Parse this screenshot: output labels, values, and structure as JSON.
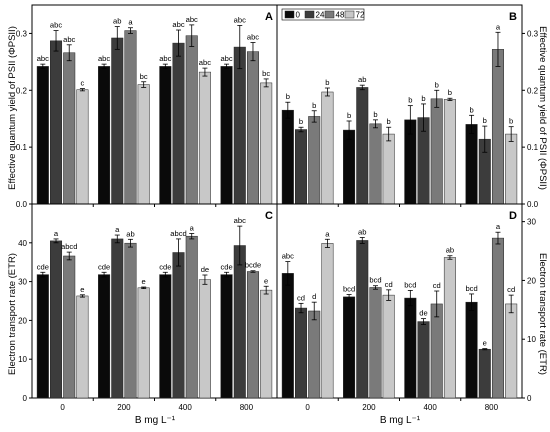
{
  "figure": {
    "x_axis_label": "B mg L⁻¹",
    "left_top_ylabel": "Effective quantum yield of PSII (ΦPSII)",
    "right_top_ylabel": "Effective quantum yield of PSII (ΦPSII)",
    "left_bottom_ylabel": "Electron transport rate (ETR)",
    "right_bottom_ylabel": "Electron transport rate (ETR)",
    "legend": [
      "0",
      "24",
      "48",
      "72"
    ],
    "series_colors": [
      "#0a0a0a",
      "#3c3c3c",
      "#7a7a7a",
      "#c8c8c8"
    ]
  },
  "chart_data": [
    {
      "panel": "A",
      "type": "bar",
      "categories": [
        "0",
        "200",
        "400",
        "800"
      ],
      "series": [
        {
          "name": "0",
          "values": [
            0.242,
            0.242,
            0.242,
            0.242
          ],
          "errors": [
            0.004,
            0.004,
            0.004,
            0.004
          ],
          "letters": [
            "abc",
            "abc",
            "abc",
            "abc"
          ]
        },
        {
          "name": "24",
          "values": [
            0.287,
            0.292,
            0.283,
            0.276
          ],
          "errors": [
            0.018,
            0.02,
            0.023,
            0.038
          ],
          "letters": [
            "abc",
            "ab",
            "abc",
            "abc"
          ]
        },
        {
          "name": "48",
          "values": [
            0.266,
            0.305,
            0.296,
            0.268
          ],
          "errors": [
            0.014,
            0.005,
            0.019,
            0.016
          ],
          "letters": [
            "abc",
            "a",
            "abc",
            "abc"
          ]
        },
        {
          "name": "72",
          "values": [
            0.201,
            0.21,
            0.232,
            0.213
          ],
          "errors": [
            0.002,
            0.005,
            0.007,
            0.007
          ],
          "letters": [
            "c",
            "bc",
            "abc",
            "bc"
          ]
        }
      ],
      "ylim": [
        0,
        0.35
      ],
      "yticks": [
        0.0,
        0.1,
        0.2,
        0.3
      ],
      "ytick_labels": [
        "0.0",
        "0.1",
        "0.2",
        "0.3"
      ],
      "yaxis_side": "left",
      "xlabel": "B mg L⁻¹",
      "ylabel": "Effective quantum yield of PSII (ΦPSII)"
    },
    {
      "panel": "B",
      "type": "bar",
      "categories": [
        "0",
        "200",
        "400",
        "800"
      ],
      "series": [
        {
          "name": "0",
          "values": [
            0.165,
            0.13,
            0.148,
            0.14
          ],
          "errors": [
            0.014,
            0.016,
            0.025,
            0.016
          ],
          "letters": [
            "b",
            "b",
            "b",
            "b"
          ]
        },
        {
          "name": "24",
          "values": [
            0.131,
            0.205,
            0.152,
            0.114
          ],
          "errors": [
            0.004,
            0.004,
            0.024,
            0.023
          ],
          "letters": [
            "b",
            "ab",
            "b",
            "b"
          ]
        },
        {
          "name": "48",
          "values": [
            0.154,
            0.141,
            0.185,
            0.272
          ],
          "errors": [
            0.01,
            0.007,
            0.015,
            0.03
          ],
          "letters": [
            "b",
            "b",
            "b",
            "a"
          ]
        },
        {
          "name": "72",
          "values": [
            0.197,
            0.123,
            0.184,
            0.123
          ],
          "errors": [
            0.007,
            0.012,
            0.002,
            0.013
          ],
          "letters": [
            "b",
            "b",
            "b",
            "b"
          ]
        }
      ],
      "ylim": [
        0,
        0.35
      ],
      "yticks": [
        0.0,
        0.1,
        0.2,
        0.3
      ],
      "ytick_labels": [
        "0.0",
        "0.1",
        "0.2",
        "0.3"
      ],
      "yaxis_side": "right",
      "legend_position": "top-left",
      "xlabel": "B mg L⁻¹",
      "ylabel": "Effective quantum yield of PSII (ΦPSII)"
    },
    {
      "panel": "C",
      "type": "bar",
      "categories": [
        "0",
        "200",
        "400",
        "800"
      ],
      "series": [
        {
          "name": "0",
          "values": [
            31.8,
            31.8,
            31.8,
            31.8
          ],
          "errors": [
            0.6,
            0.6,
            0.6,
            0.6
          ],
          "letters": [
            "cde",
            "cde",
            "cde",
            "cde"
          ]
        },
        {
          "name": "24",
          "values": [
            40.5,
            41.0,
            37.5,
            39.3
          ],
          "errors": [
            0.5,
            1.0,
            3.5,
            5.0
          ],
          "letters": [
            "a",
            "a",
            "abcd",
            "abc"
          ]
        },
        {
          "name": "48",
          "values": [
            36.6,
            39.9,
            41.7,
            32.6
          ],
          "errors": [
            1.0,
            1.0,
            0.7,
            0.2
          ],
          "letters": [
            "abcd",
            "ab",
            "a",
            "bcde"
          ]
        },
        {
          "name": "72",
          "values": [
            26.3,
            28.4,
            30.5,
            27.8
          ],
          "errors": [
            0.3,
            0.2,
            1.2,
            1.0
          ],
          "letters": [
            "e",
            "e",
            "de",
            "e"
          ]
        }
      ],
      "ylim": [
        0,
        50
      ],
      "yticks": [
        0,
        10,
        20,
        30,
        40
      ],
      "ytick_labels": [
        "0",
        "10",
        "20",
        "30",
        "40"
      ],
      "yaxis_side": "left",
      "xlabel": "B mg L⁻¹",
      "ylabel": "Electron transport rate (ETR)"
    },
    {
      "panel": "D",
      "type": "bar",
      "categories": [
        "0",
        "200",
        "400",
        "800"
      ],
      "series": [
        {
          "name": "0",
          "values": [
            21.2,
            17.2,
            17.0,
            16.3
          ],
          "errors": [
            2.0,
            0.4,
            1.3,
            1.4
          ],
          "letters": [
            "abc",
            "bcd",
            "bcd",
            "bcd"
          ]
        },
        {
          "name": "24",
          "values": [
            15.3,
            26.8,
            13.0,
            8.3
          ],
          "errors": [
            0.8,
            0.5,
            0.5,
            0.1
          ],
          "letters": [
            "cd",
            "ab",
            "de",
            "e"
          ]
        },
        {
          "name": "48",
          "values": [
            14.8,
            18.8,
            16.0,
            27.2
          ],
          "errors": [
            1.5,
            0.3,
            2.2,
            1.0
          ],
          "letters": [
            "d",
            "bcd",
            "cd",
            "a"
          ]
        },
        {
          "name": "72",
          "values": [
            26.3,
            17.5,
            23.9,
            16.0
          ],
          "errors": [
            0.7,
            0.9,
            0.3,
            1.5
          ],
          "letters": [
            "a",
            "cd",
            "ab",
            "cd"
          ]
        }
      ],
      "ylim": [
        0,
        33
      ],
      "yticks": [
        0,
        10,
        20,
        30
      ],
      "ytick_labels": [
        "0",
        "10",
        "20",
        "30"
      ],
      "yaxis_side": "right",
      "xlabel": "B mg L⁻¹",
      "ylabel": "Electron transport rate (ETR)"
    }
  ]
}
